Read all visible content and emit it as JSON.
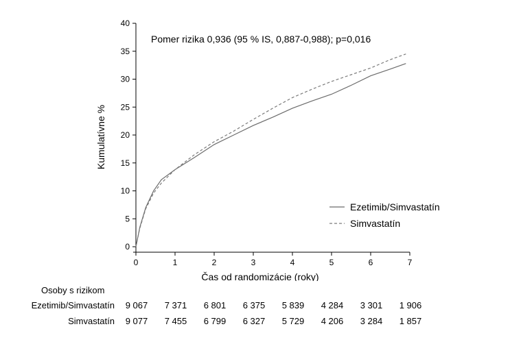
{
  "chart_data": {
    "type": "line",
    "title": "",
    "annotation": "Pomer rizika 0,936 (95 % IS, 0,887-0,988); p=0,016",
    "xlabel": "Čas od randomizácie (roky)",
    "ylabel": "Kumulatívne %",
    "xlim": [
      0,
      7
    ],
    "ylim": [
      0,
      40
    ],
    "x_ticks": [
      "0",
      "1",
      "2",
      "3",
      "4",
      "5",
      "6",
      "7"
    ],
    "y_ticks": [
      "0",
      "5",
      "10",
      "15",
      "20",
      "25",
      "30",
      "35",
      "40"
    ],
    "grid": false,
    "legend_position": "bottom-right",
    "series": [
      {
        "name": "Ezetimib/Simvastatín",
        "style": "solid",
        "color": "#6b6b6b",
        "x": [
          0,
          0.1,
          0.25,
          0.45,
          0.65,
          1.0,
          1.5,
          2.0,
          2.5,
          3.0,
          3.5,
          4.0,
          4.5,
          5.0,
          5.5,
          6.0,
          6.5,
          6.9
        ],
        "y": [
          0,
          3.5,
          7.0,
          10.0,
          12.0,
          13.8,
          16.0,
          18.3,
          20.0,
          21.7,
          23.2,
          24.8,
          26.1,
          27.3,
          28.9,
          30.6,
          31.8,
          32.8
        ]
      },
      {
        "name": "Simvastatín",
        "style": "dashed",
        "color": "#7a7a7a",
        "x": [
          0,
          0.1,
          0.25,
          0.45,
          0.65,
          1.0,
          1.5,
          2.0,
          2.5,
          3.0,
          3.5,
          4.0,
          4.5,
          5.0,
          5.5,
          6.0,
          6.5,
          6.9
        ],
        "y": [
          0,
          3.3,
          6.8,
          9.6,
          11.4,
          13.8,
          16.5,
          18.8,
          20.7,
          22.8,
          24.8,
          26.7,
          28.2,
          29.6,
          30.8,
          32.0,
          33.5,
          34.5
        ]
      }
    ]
  },
  "risk_table": {
    "title": "Osoby s rizikom",
    "rows": [
      {
        "label": "Ezetimib/Simvastatín",
        "values": [
          "9 067",
          "7 371",
          "6 801",
          "6 375",
          "5 839",
          "4 284",
          "3 301",
          "1 906"
        ]
      },
      {
        "label": "Simvastatín",
        "values": [
          "9 077",
          "7 455",
          "6 799",
          "6 327",
          "5 729",
          "4 206",
          "3 284",
          "1 857"
        ]
      }
    ]
  }
}
